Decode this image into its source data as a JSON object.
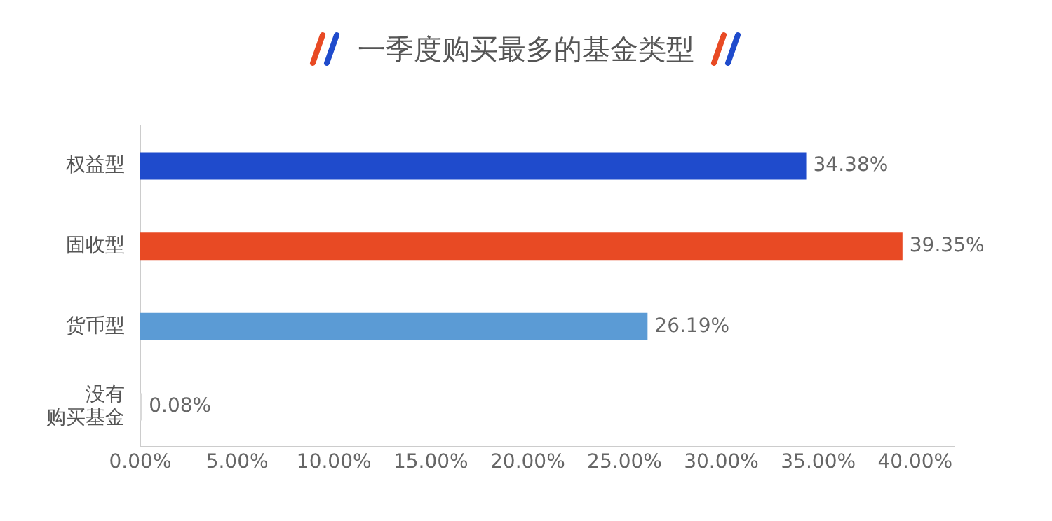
{
  "chart_data": {
    "type": "bar",
    "orientation": "horizontal",
    "title": "一季度购买最多的基金类型",
    "categories": [
      "权益型",
      "固收型",
      "货币型",
      "没有购买基金"
    ],
    "values": [
      34.38,
      39.35,
      26.19,
      0.08
    ],
    "colors": [
      "#1f4bcc",
      "#e84a24",
      "#5b9bd5",
      "#d9d9d9"
    ],
    "value_labels": [
      "34.38%",
      "39.35%",
      "26.19%",
      "0.08%"
    ],
    "xlim": [
      0,
      42
    ],
    "xticks": [
      {
        "value": 0,
        "label": "0.00%"
      },
      {
        "value": 5,
        "label": "5.00%"
      },
      {
        "value": 10,
        "label": "10.00%"
      },
      {
        "value": 15,
        "label": "15.00%"
      },
      {
        "value": 20,
        "label": "20.00%"
      },
      {
        "value": 25,
        "label": "25.00%"
      },
      {
        "value": 30,
        "label": "30.00%"
      },
      {
        "value": 35,
        "label": "35.00%"
      },
      {
        "value": 40,
        "label": "40.00%"
      }
    ],
    "grid": false,
    "legend": false
  }
}
